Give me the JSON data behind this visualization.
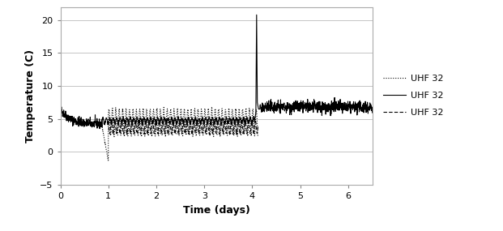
{
  "title": "",
  "xlabel": "Time (days)",
  "ylabel": "Temperature (C)",
  "xlim": [
    0,
    6.5
  ],
  "ylim": [
    -5,
    22
  ],
  "yticks": [
    -5,
    0,
    5,
    10,
    15,
    20
  ],
  "xticks": [
    0,
    1,
    2,
    3,
    4,
    5,
    6
  ],
  "legend_labels": [
    "UHF 32",
    "UHF 32",
    "UHF 32"
  ],
  "legend_styles": [
    "dotted",
    "solid",
    "dashed"
  ],
  "background_color": "#ffffff",
  "line_color": "#000000",
  "grid_color": "#bbbbbb",
  "solid_phase1_start": 6.5,
  "solid_phase1_mean": 4.2,
  "solid_phase1_noise": 0.35,
  "solid_phase2_mean": 4.7,
  "solid_phase2_amp": 0.45,
  "solid_phase2_noise": 0.1,
  "solid_spike_x": [
    4.05,
    4.075,
    4.09,
    4.105,
    4.13,
    4.16
  ],
  "solid_spike_y": [
    4.7,
    6.0,
    20.8,
    7.5,
    6.5,
    6.5
  ],
  "solid_phase4_mean": 6.8,
  "solid_phase4_noise": 0.45,
  "dot_drop_start": 0.87,
  "dot_drop_from": 3.8,
  "dot_drop_to": -1.3,
  "dot_osc_mean": 4.5,
  "dot_osc_amp": 2.0,
  "dot_osc_noise": 0.12,
  "dash_osc_mean": 3.8,
  "dash_osc_amp": 1.0,
  "dash_osc_noise": 0.1,
  "osc_freq": 14,
  "dt": 0.003472
}
